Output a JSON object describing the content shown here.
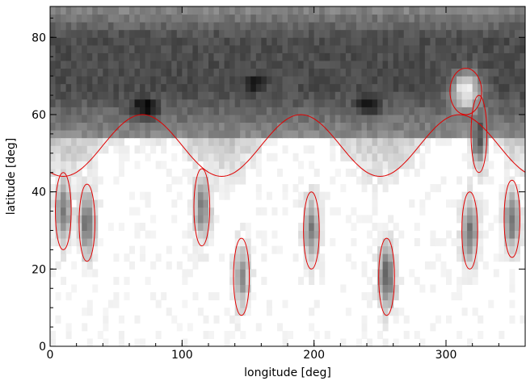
{
  "chart_data": {
    "type": "heatmap",
    "title": "",
    "xlabel": "longitude [deg]",
    "ylabel": "latitude [deg]",
    "xlim": [
      0,
      360
    ],
    "ylim": [
      0,
      88
    ],
    "xticks": [
      0,
      100,
      200,
      300
    ],
    "yticks": [
      0,
      20,
      40,
      60,
      80
    ],
    "xtick_labels": [
      "0",
      "100",
      "200",
      "300"
    ],
    "ytick_labels": [
      "0",
      "20",
      "40",
      "60",
      "80"
    ],
    "grid": false,
    "colormap": "grayscale (white = low, black = high)",
    "contour_color": "#e00000",
    "high_latitude_band": {
      "lat_range": [
        60,
        88
      ],
      "intensity": "dark gray to black"
    },
    "features": [
      {
        "name": "polar-crown-dark",
        "lon": 72,
        "lat": 62,
        "intensity": 0.95
      },
      {
        "name": "polar-crown-dark",
        "lon": 155,
        "lat": 68,
        "intensity": 0.9
      },
      {
        "name": "polar-crown-dark",
        "lon": 240,
        "lat": 63,
        "intensity": 0.9
      },
      {
        "name": "bright-hole",
        "lon": 315,
        "lat": 66,
        "intensity": 0.0
      },
      {
        "name": "spot",
        "lon": 10,
        "lat": 35,
        "intensity": 0.55
      },
      {
        "name": "spot",
        "lon": 28,
        "lat": 32,
        "intensity": 0.6
      },
      {
        "name": "spot",
        "lon": 115,
        "lat": 36,
        "intensity": 0.5
      },
      {
        "name": "spot",
        "lon": 145,
        "lat": 18,
        "intensity": 0.45
      },
      {
        "name": "spot",
        "lon": 198,
        "lat": 30,
        "intensity": 0.5
      },
      {
        "name": "spot",
        "lon": 255,
        "lat": 18,
        "intensity": 0.65
      },
      {
        "name": "spot",
        "lon": 318,
        "lat": 30,
        "intensity": 0.55
      },
      {
        "name": "spot",
        "lon": 350,
        "lat": 33,
        "intensity": 0.55
      },
      {
        "name": "spot",
        "lon": 325,
        "lat": 55,
        "intensity": 0.7
      }
    ]
  }
}
